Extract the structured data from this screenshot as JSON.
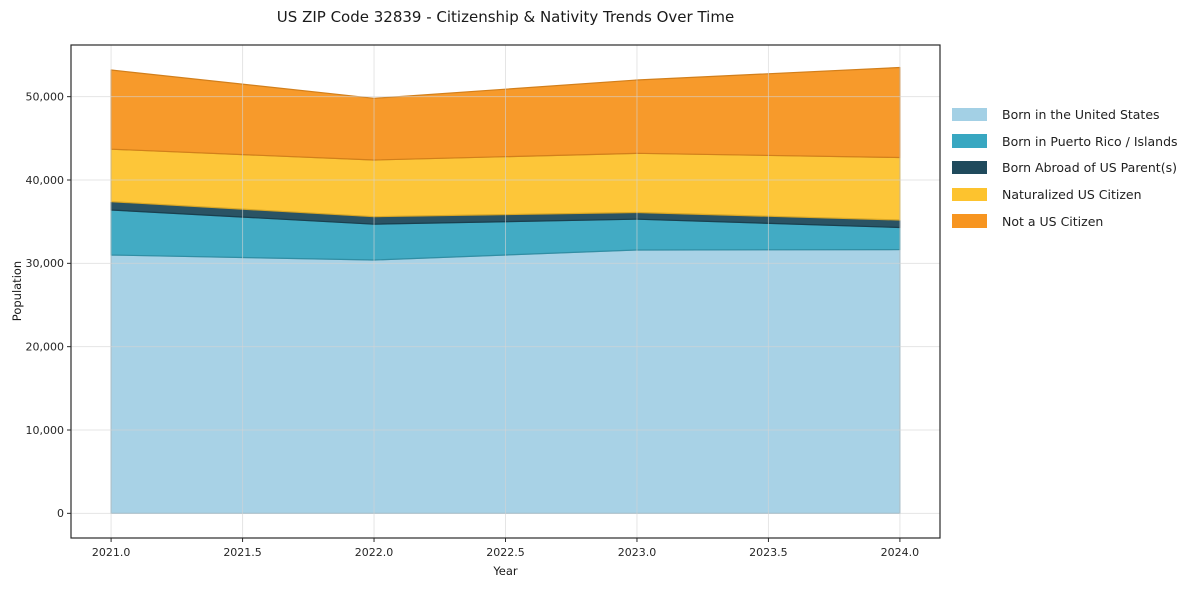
{
  "chart_data": {
    "type": "area",
    "stacked": true,
    "title": "US ZIP Code 32839 - Citizenship & Nativity Trends Over Time",
    "xlabel": "Year",
    "ylabel": "Population",
    "x": [
      2021,
      2022,
      2023,
      2024
    ],
    "series": [
      {
        "name": "Born in the United States",
        "color": "#a3d0e5",
        "values": [
          31000,
          30400,
          31600,
          31650
        ]
      },
      {
        "name": "Born in Puerto Rico / Islands",
        "color": "#38a7c1",
        "values": [
          5400,
          4300,
          3700,
          2650
        ]
      },
      {
        "name": "Born Abroad of US Parent(s)",
        "color": "#1f4a5c",
        "values": [
          1000,
          900,
          800,
          900
        ]
      },
      {
        "name": "Naturalized US Citizen",
        "color": "#fdc32e",
        "values": [
          6300,
          6800,
          7100,
          7500
        ]
      },
      {
        "name": "Not a US Citizen",
        "color": "#f79520",
        "values": [
          9500,
          7400,
          8800,
          10800
        ]
      }
    ],
    "totals": [
      53200,
      49800,
      52000,
      53500
    ],
    "x_ticks": [
      {
        "value": 2021.0,
        "label": "2021.0"
      },
      {
        "value": 2021.5,
        "label": "2021.5"
      },
      {
        "value": 2022.0,
        "label": "2022.0"
      },
      {
        "value": 2022.5,
        "label": "2022.5"
      },
      {
        "value": 2023.0,
        "label": "2023.0"
      },
      {
        "value": 2023.5,
        "label": "2023.5"
      },
      {
        "value": 2024.0,
        "label": "2024.0"
      }
    ],
    "y_ticks": [
      {
        "value": 0,
        "label": "0"
      },
      {
        "value": 10000,
        "label": "10,000"
      },
      {
        "value": 20000,
        "label": "20,000"
      },
      {
        "value": 30000,
        "label": "30,000"
      },
      {
        "value": 40000,
        "label": "40,000"
      },
      {
        "value": 50000,
        "label": "50,000"
      }
    ],
    "xlim": [
      2020.8475,
      2024.1525
    ],
    "ylim": [
      -2960,
      56200
    ],
    "grid": true,
    "legend_position": "right-outside"
  },
  "colors": {
    "background": "#ffffff",
    "grid": "#d4d4d4",
    "spine": "#2a2a2a",
    "text": "#262626"
  }
}
